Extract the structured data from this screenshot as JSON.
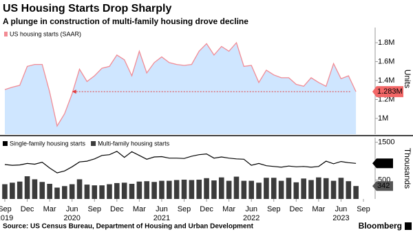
{
  "chart_data": [
    {
      "type": "area",
      "title": "US Housing Starts Drop Sharply",
      "subtitle": "A plunge in construction of multi-family housing drove decline",
      "y_axis_label": "Units",
      "categories": [
        "Sep",
        null,
        null,
        "Dec",
        null,
        null,
        "Mar",
        null,
        null,
        "Jun",
        null,
        null,
        "Sep",
        null,
        null,
        "Dec",
        null,
        null,
        "Mar",
        null,
        null,
        "Jun",
        null,
        null,
        "Sep",
        null,
        null,
        "Dec",
        null,
        null,
        "Mar",
        null,
        null,
        "Jun",
        null,
        null,
        "Sep",
        null,
        null,
        "Dec",
        null,
        null,
        "Mar",
        null,
        null,
        "Jun",
        null,
        null,
        "Sep"
      ],
      "years": [
        {
          "label": "2019",
          "at": 0
        },
        {
          "label": "2020",
          "at": 9
        },
        {
          "label": "2021",
          "at": 21
        },
        {
          "label": "2022",
          "at": 33
        },
        {
          "label": "2023",
          "at": 45
        }
      ],
      "series": [
        {
          "name": "US housing starts (SAAR)",
          "color": "#f28b94",
          "fill": "#cfe6ff",
          "values": [
            1305000,
            1330000,
            1350000,
            1550000,
            1570000,
            1570000,
            1280000,
            920000,
            1050000,
            1260000,
            1520000,
            1390000,
            1450000,
            1530000,
            1550000,
            1670000,
            1620000,
            1450000,
            1710000,
            1480000,
            1590000,
            1650000,
            1590000,
            1570000,
            1560000,
            1570000,
            1710000,
            1790000,
            1670000,
            1760000,
            1710000,
            1800000,
            1550000,
            1560000,
            1380000,
            1510000,
            1460000,
            1430000,
            1430000,
            1360000,
            1340000,
            1430000,
            1380000,
            1340000,
            1580000,
            1420000,
            1450000,
            1283000,
            null
          ],
          "value_labels": [
            null,
            null,
            null,
            null,
            null,
            null,
            null,
            null,
            null,
            null,
            null,
            null,
            null,
            null,
            null,
            null,
            null,
            null,
            null,
            null,
            null,
            null,
            null,
            null,
            null,
            null,
            null,
            null,
            null,
            null,
            null,
            null,
            null,
            null,
            null,
            null,
            null,
            null,
            null,
            null,
            null,
            null,
            null,
            null,
            null,
            null,
            null,
            "1.283M",
            null
          ],
          "label_color": "#f26767"
        }
      ],
      "ylim": [
        833000,
        1960000
      ],
      "yticks": [
        {
          "value": 1000000,
          "label": "1M"
        },
        {
          "value": 1200000,
          "label": "1.2M"
        },
        {
          "value": 1400000,
          "label": "1.4M"
        },
        {
          "value": 1600000,
          "label": "1.6M"
        },
        {
          "value": 1800000,
          "label": "1.8M"
        }
      ],
      "grid": false
    },
    {
      "type": "bar-line",
      "y_axis_label": "Thousands",
      "series": [
        {
          "name": "Single-family housing starts",
          "kind": "line",
          "color": "#000000",
          "values": [
            910,
            890,
            900,
            940,
            920,
            970,
            820,
            690,
            740,
            850,
            980,
            1000,
            1060,
            1150,
            1170,
            1260,
            1100,
            1250,
            1150,
            1050,
            1110,
            1120,
            1080,
            1080,
            1070,
            1130,
            1170,
            1190,
            1080,
            1110,
            1080,
            1060,
            1050,
            890,
            940,
            880,
            860,
            840,
            870,
            850,
            860,
            840,
            860,
            1000,
            930,
            990,
            960,
            941,
            null
          ],
          "value_labels": [
            null,
            null,
            null,
            null,
            null,
            null,
            null,
            null,
            null,
            null,
            null,
            null,
            null,
            null,
            null,
            null,
            null,
            null,
            null,
            null,
            null,
            null,
            null,
            null,
            null,
            null,
            null,
            null,
            null,
            null,
            null,
            null,
            null,
            null,
            null,
            null,
            null,
            null,
            null,
            null,
            null,
            null,
            null,
            null,
            null,
            null,
            null,
            "941",
            null
          ]
        },
        {
          "name": "Multi-family housing starts",
          "kind": "bar",
          "color": "#3b3b3b",
          "values": [
            390,
            430,
            460,
            600,
            520,
            450,
            400,
            300,
            340,
            390,
            520,
            380,
            360,
            360,
            390,
            420,
            430,
            400,
            460,
            470,
            450,
            480,
            480,
            500,
            510,
            500,
            510,
            550,
            490,
            570,
            480,
            590,
            480,
            480,
            430,
            560,
            560,
            480,
            560,
            440,
            540,
            500,
            570,
            550,
            480,
            560,
            470,
            342,
            null
          ],
          "value_labels": [
            null,
            null,
            null,
            null,
            null,
            null,
            null,
            null,
            null,
            null,
            null,
            null,
            null,
            null,
            null,
            null,
            null,
            null,
            null,
            null,
            null,
            null,
            null,
            null,
            null,
            null,
            null,
            null,
            null,
            null,
            null,
            null,
            null,
            null,
            null,
            null,
            null,
            null,
            null,
            null,
            null,
            null,
            null,
            null,
            null,
            null,
            null,
            "342",
            null
          ]
        }
      ],
      "ylim": [
        0,
        1620
      ],
      "yticks": [
        500,
        1500
      ],
      "grid": false
    }
  ],
  "footer": {
    "source": "Source: US Census Bureau, Department of Housing and Urban Development",
    "brand": "Bloomberg"
  }
}
